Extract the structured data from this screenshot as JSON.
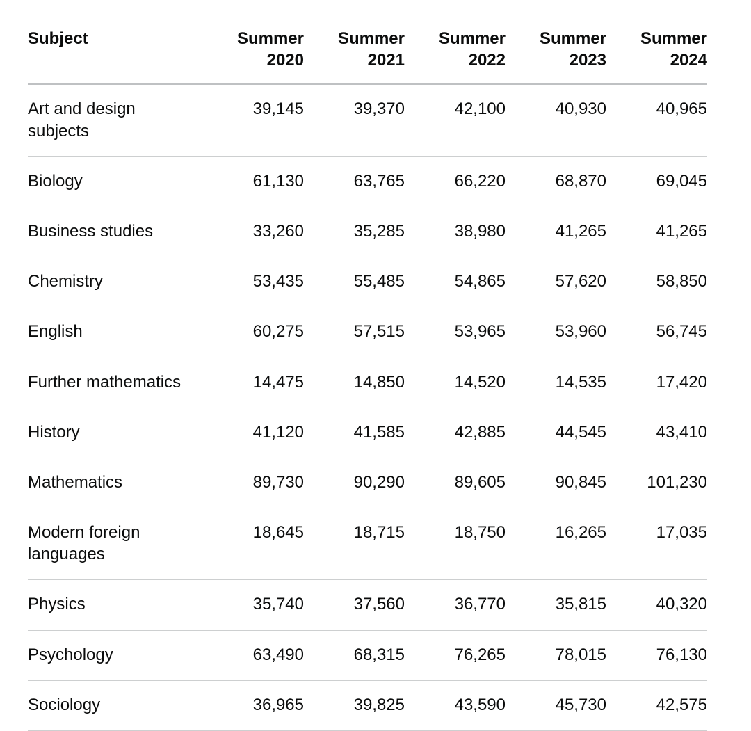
{
  "chart_data": {
    "type": "table",
    "columns": [
      "Subject",
      "Summer 2020",
      "Summer 2021",
      "Summer 2022",
      "Summer 2023",
      "Summer 2024"
    ],
    "rows": [
      {
        "subject": "Art and design subjects",
        "values": [
          "39,145",
          "39,370",
          "42,100",
          "40,930",
          "40,965"
        ]
      },
      {
        "subject": "Biology",
        "values": [
          "61,130",
          "63,765",
          "66,220",
          "68,870",
          "69,045"
        ]
      },
      {
        "subject": "Business studies",
        "values": [
          "33,260",
          "35,285",
          "38,980",
          "41,265",
          "41,265"
        ]
      },
      {
        "subject": "Chemistry",
        "values": [
          "53,435",
          "55,485",
          "54,865",
          "57,620",
          "58,850"
        ]
      },
      {
        "subject": "English",
        "values": [
          "60,275",
          "57,515",
          "53,965",
          "53,960",
          "56,745"
        ]
      },
      {
        "subject": "Further mathematics",
        "values": [
          "14,475",
          "14,850",
          "14,520",
          "14,535",
          "17,420"
        ]
      },
      {
        "subject": "History",
        "values": [
          "41,120",
          "41,585",
          "42,885",
          "44,545",
          "43,410"
        ]
      },
      {
        "subject": "Mathematics",
        "values": [
          "89,730",
          "90,290",
          "89,605",
          "90,845",
          "101,230"
        ]
      },
      {
        "subject": "Modern foreign languages",
        "values": [
          "18,645",
          "18,715",
          "18,750",
          "16,265",
          "17,035"
        ]
      },
      {
        "subject": "Physics",
        "values": [
          "35,740",
          "37,560",
          "36,770",
          "35,815",
          "40,320"
        ]
      },
      {
        "subject": "Psychology",
        "values": [
          "63,490",
          "68,315",
          "76,265",
          "78,015",
          "76,130"
        ]
      },
      {
        "subject": "Sociology",
        "values": [
          "36,965",
          "39,825",
          "43,590",
          "45,730",
          "42,575"
        ]
      }
    ],
    "layout": {
      "header_align": "numeric columns right-aligned, subject left-aligned",
      "grid": "horizontal row rules only"
    },
    "colors": {
      "text": "#0b0c0c",
      "header_rule": "#bfc1c3",
      "row_rule": "#cdcfd0",
      "background": "#ffffff"
    }
  }
}
